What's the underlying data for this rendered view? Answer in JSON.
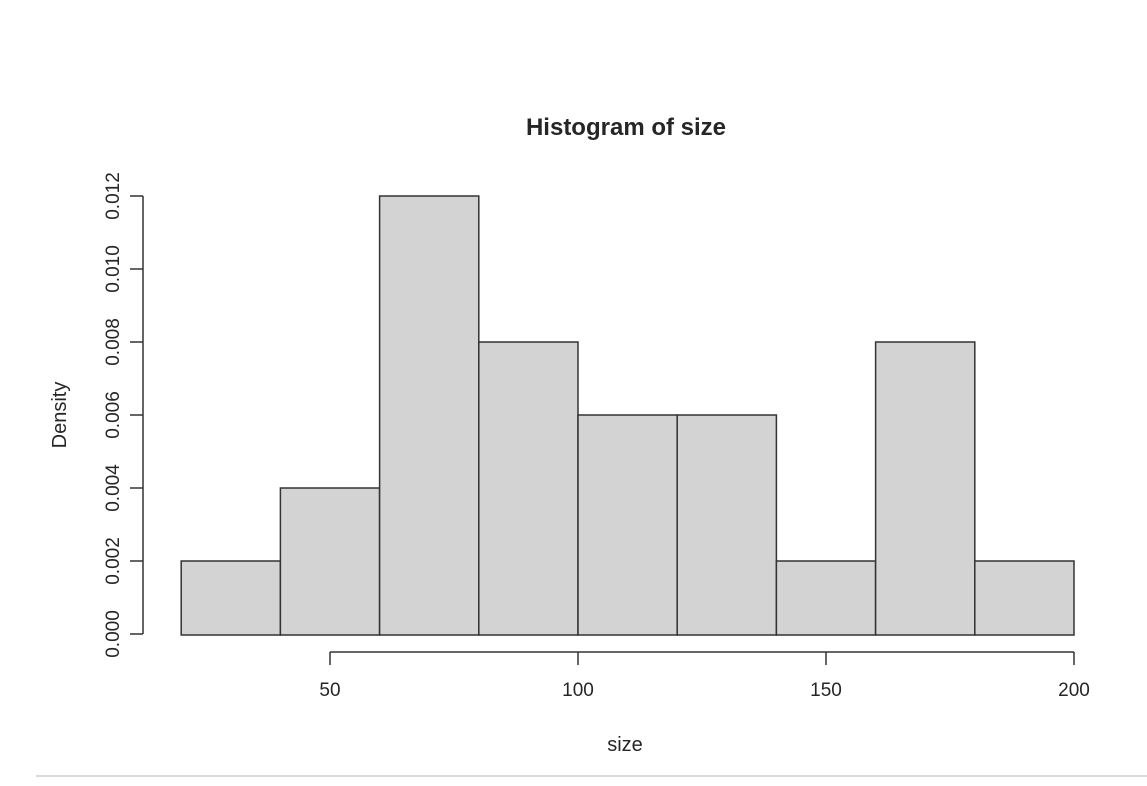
{
  "page": {
    "background": "#ffffff",
    "divider_color": "#d9d9d9"
  },
  "chart_data": {
    "type": "bar",
    "subtype": "histogram",
    "title": "Histogram of size",
    "xlabel": "size",
    "ylabel": "Density",
    "bin_width": 20,
    "bin_edges": [
      20,
      40,
      60,
      80,
      100,
      120,
      140,
      160,
      180,
      200
    ],
    "densities": [
      0.002,
      0.004,
      0.012,
      0.008,
      0.006,
      0.006,
      0.002,
      0.008,
      0.002
    ],
    "x_ticks": [
      50,
      100,
      150,
      200
    ],
    "x_tick_labels": [
      "50",
      "100",
      "150",
      "200"
    ],
    "y_ticks": [
      0.0,
      0.002,
      0.004,
      0.006,
      0.008,
      0.01,
      0.012
    ],
    "y_tick_labels": [
      "0.000",
      "0.002",
      "0.004",
      "0.006",
      "0.008",
      "0.010",
      "0.012"
    ],
    "xlim": [
      20,
      200
    ],
    "ylim": [
      0,
      0.012
    ],
    "grid": false,
    "legend": false,
    "bar_fill": "#d3d3d3",
    "bar_border": "#333333",
    "axis_color": "#333333",
    "text_color": "#262626"
  }
}
